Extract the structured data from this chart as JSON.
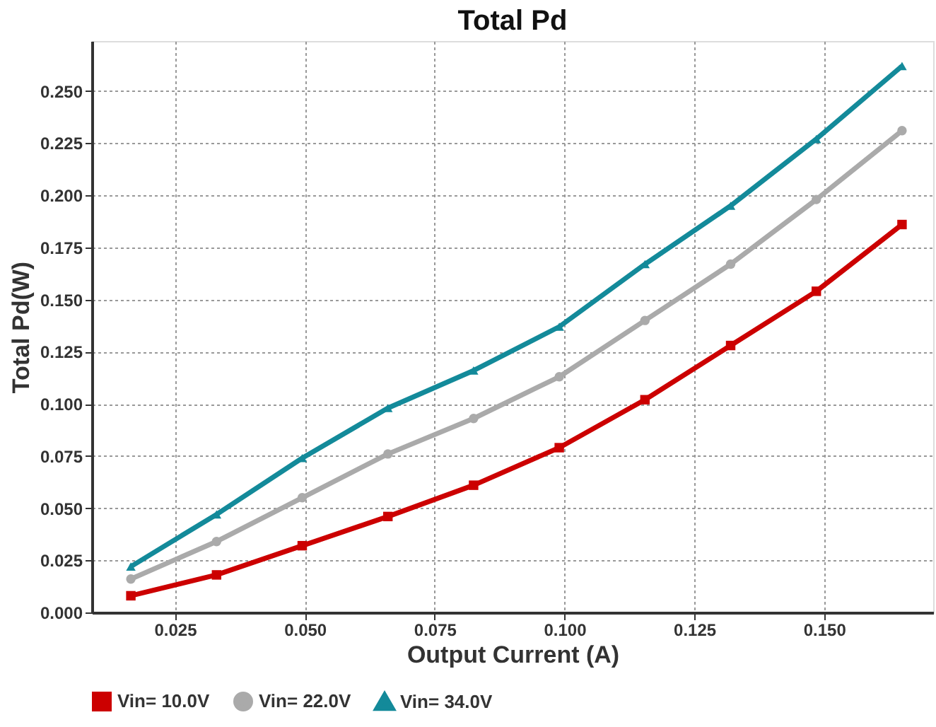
{
  "chart_data": {
    "type": "line",
    "title": "Total Pd",
    "xlabel": "Output Current (A)",
    "ylabel": "Total Pd(W)",
    "x": [
      0.0165,
      0.033,
      0.0495,
      0.066,
      0.0825,
      0.099,
      0.1155,
      0.132,
      0.1485,
      0.165
    ],
    "series": [
      {
        "name": "Vin= 10.0V",
        "color": "#cc0000",
        "marker": "square",
        "values": [
          0.008,
          0.018,
          0.032,
          0.046,
          0.061,
          0.079,
          0.102,
          0.128,
          0.154,
          0.186
        ]
      },
      {
        "name": "Vin= 22.0V",
        "color": "#aaaaaa",
        "marker": "circle",
        "values": [
          0.016,
          0.034,
          0.055,
          0.076,
          0.093,
          0.113,
          0.14,
          0.167,
          0.198,
          0.231
        ]
      },
      {
        "name": "Vin= 34.0V",
        "color": "#138a9a",
        "marker": "triangle",
        "values": [
          0.022,
          0.047,
          0.074,
          0.098,
          0.116,
          0.137,
          0.167,
          0.195,
          0.227,
          0.262
        ]
      }
    ],
    "xlim": [
      0.009,
      0.171
    ],
    "xticks": [
      0.025,
      {
        "value": 0.05,
        "label": "0.050"
      },
      0.075,
      {
        "value": 0.1,
        "label": "0.100"
      },
      0.125,
      {
        "value": 0.15,
        "label": "0.150"
      }
    ],
    "ylim": [
      0,
      0.274
    ],
    "yticks": [
      {
        "value": 0,
        "label": "0.000"
      },
      0.025,
      {
        "value": 0.05,
        "label": "0.050"
      },
      0.075,
      {
        "value": 0.1,
        "label": "0.100"
      },
      0.125,
      {
        "value": 0.15,
        "label": "0.150"
      },
      0.175,
      {
        "value": 0.2,
        "label": "0.200"
      },
      0.225,
      {
        "value": 0.25,
        "label": "0.250"
      }
    ],
    "grid": true,
    "legend": "bottom",
    "line_style": "solid"
  }
}
